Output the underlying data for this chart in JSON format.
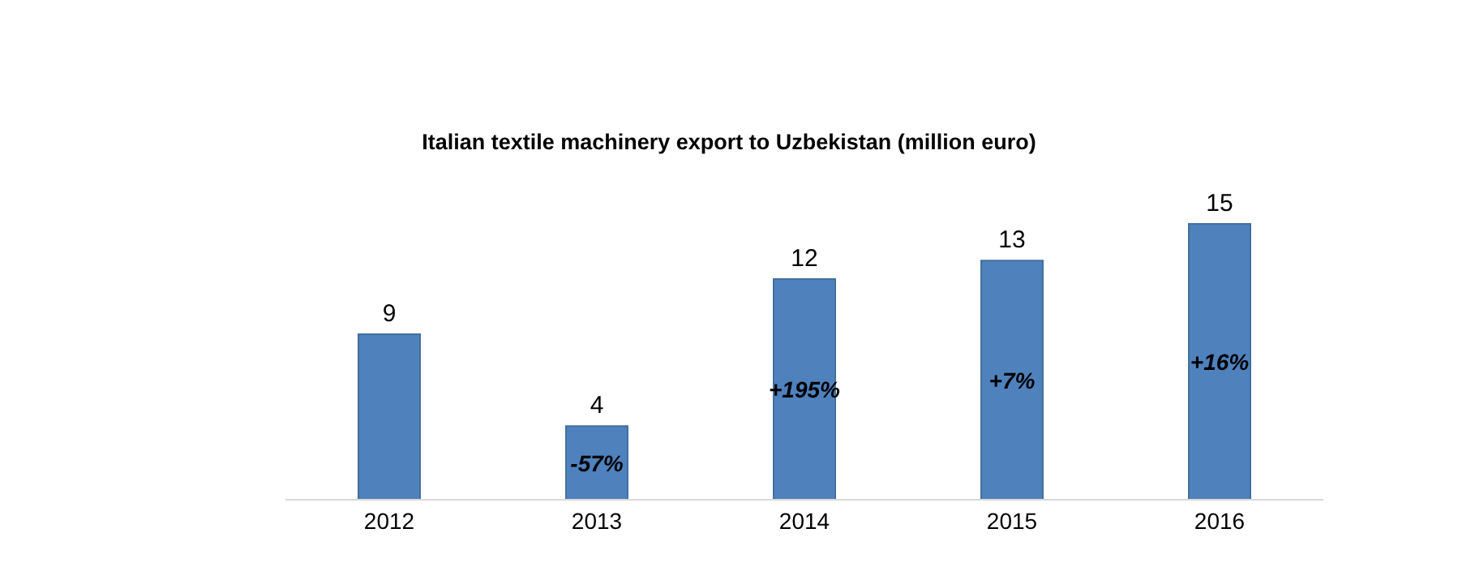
{
  "chart_data": {
    "type": "bar",
    "title": "Italian textile machinery export to Uzbekistan (million euro)",
    "categories": [
      "2012",
      "2013",
      "2014",
      "2015",
      "2016"
    ],
    "values": [
      9,
      4,
      12,
      13,
      15
    ],
    "color": "#4f81bd",
    "data_labels": true,
    "tick_labels": "x",
    "grid": false,
    "legend": false,
    "annotations": [
      "-57%",
      "+195%",
      "+7%",
      "+16%"
    ]
  }
}
